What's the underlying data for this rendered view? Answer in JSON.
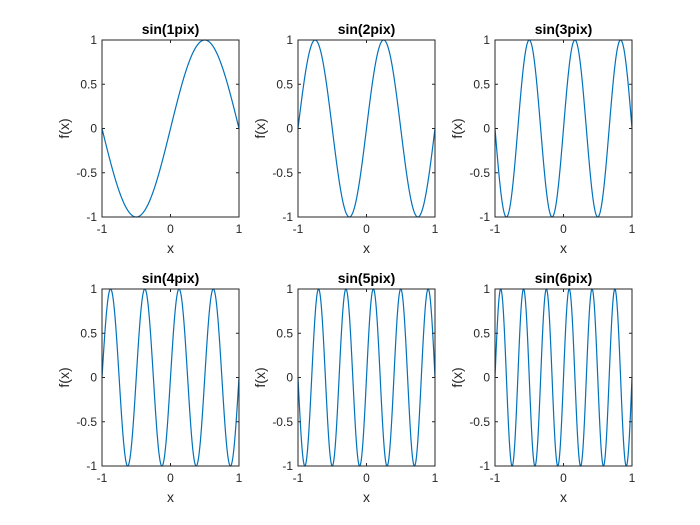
{
  "colors": {
    "line": "#0072BD",
    "axes": "#262626"
  },
  "chart_data": [
    {
      "type": "line",
      "title": "sin(1pix)",
      "xlabel": "x",
      "ylabel": "f(x)",
      "function": "sin",
      "frequency": 1,
      "xlim": [
        -1,
        1
      ],
      "ylim": [
        -1,
        1
      ],
      "xticks": [
        -1,
        0,
        1
      ],
      "yticks": [
        -1,
        -0.5,
        0,
        0.5,
        1
      ],
      "xtick_labels": [
        "-1",
        "0",
        "1"
      ],
      "ytick_labels": [
        "-1",
        "-0.5",
        "0",
        "0.5",
        "1"
      ],
      "grid": false
    },
    {
      "type": "line",
      "title": "sin(2pix)",
      "xlabel": "x",
      "ylabel": "f(x)",
      "function": "sin",
      "frequency": 2,
      "xlim": [
        -1,
        1
      ],
      "ylim": [
        -1,
        1
      ],
      "xticks": [
        -1,
        0,
        1
      ],
      "yticks": [
        -1,
        -0.5,
        0,
        0.5,
        1
      ],
      "xtick_labels": [
        "-1",
        "0",
        "1"
      ],
      "ytick_labels": [
        "-1",
        "-0.5",
        "0",
        "0.5",
        "1"
      ],
      "grid": false
    },
    {
      "type": "line",
      "title": "sin(3pix)",
      "xlabel": "x",
      "ylabel": "f(x)",
      "function": "sin",
      "frequency": 3,
      "xlim": [
        -1,
        1
      ],
      "ylim": [
        -1,
        1
      ],
      "xticks": [
        -1,
        0,
        1
      ],
      "yticks": [
        -1,
        -0.5,
        0,
        0.5,
        1
      ],
      "xtick_labels": [
        "-1",
        "0",
        "1"
      ],
      "ytick_labels": [
        "-1",
        "-0.5",
        "0",
        "0.5",
        "1"
      ],
      "grid": false
    },
    {
      "type": "line",
      "title": "sin(4pix)",
      "xlabel": "x",
      "ylabel": "f(x)",
      "function": "sin",
      "frequency": 4,
      "xlim": [
        -1,
        1
      ],
      "ylim": [
        -1,
        1
      ],
      "xticks": [
        -1,
        0,
        1
      ],
      "yticks": [
        -1,
        -0.5,
        0,
        0.5,
        1
      ],
      "xtick_labels": [
        "-1",
        "0",
        "1"
      ],
      "ytick_labels": [
        "-1",
        "-0.5",
        "0",
        "0.5",
        "1"
      ],
      "grid": false
    },
    {
      "type": "line",
      "title": "sin(5pix)",
      "xlabel": "x",
      "ylabel": "f(x)",
      "function": "sin",
      "frequency": 5,
      "xlim": [
        -1,
        1
      ],
      "ylim": [
        -1,
        1
      ],
      "xticks": [
        -1,
        0,
        1
      ],
      "yticks": [
        -1,
        -0.5,
        0,
        0.5,
        1
      ],
      "xtick_labels": [
        "-1",
        "0",
        "1"
      ],
      "ytick_labels": [
        "-1",
        "-0.5",
        "0",
        "0.5",
        "1"
      ],
      "grid": false
    },
    {
      "type": "line",
      "title": "sin(6pix)",
      "xlabel": "x",
      "ylabel": "f(x)",
      "function": "sin",
      "frequency": 6,
      "xlim": [
        -1,
        1
      ],
      "ylim": [
        -1,
        1
      ],
      "xticks": [
        -1,
        0,
        1
      ],
      "yticks": [
        -1,
        -0.5,
        0,
        0.5,
        1
      ],
      "xtick_labels": [
        "-1",
        "0",
        "1"
      ],
      "ytick_labels": [
        "-1",
        "-0.5",
        "0",
        "0.5",
        "1"
      ],
      "grid": false
    }
  ]
}
